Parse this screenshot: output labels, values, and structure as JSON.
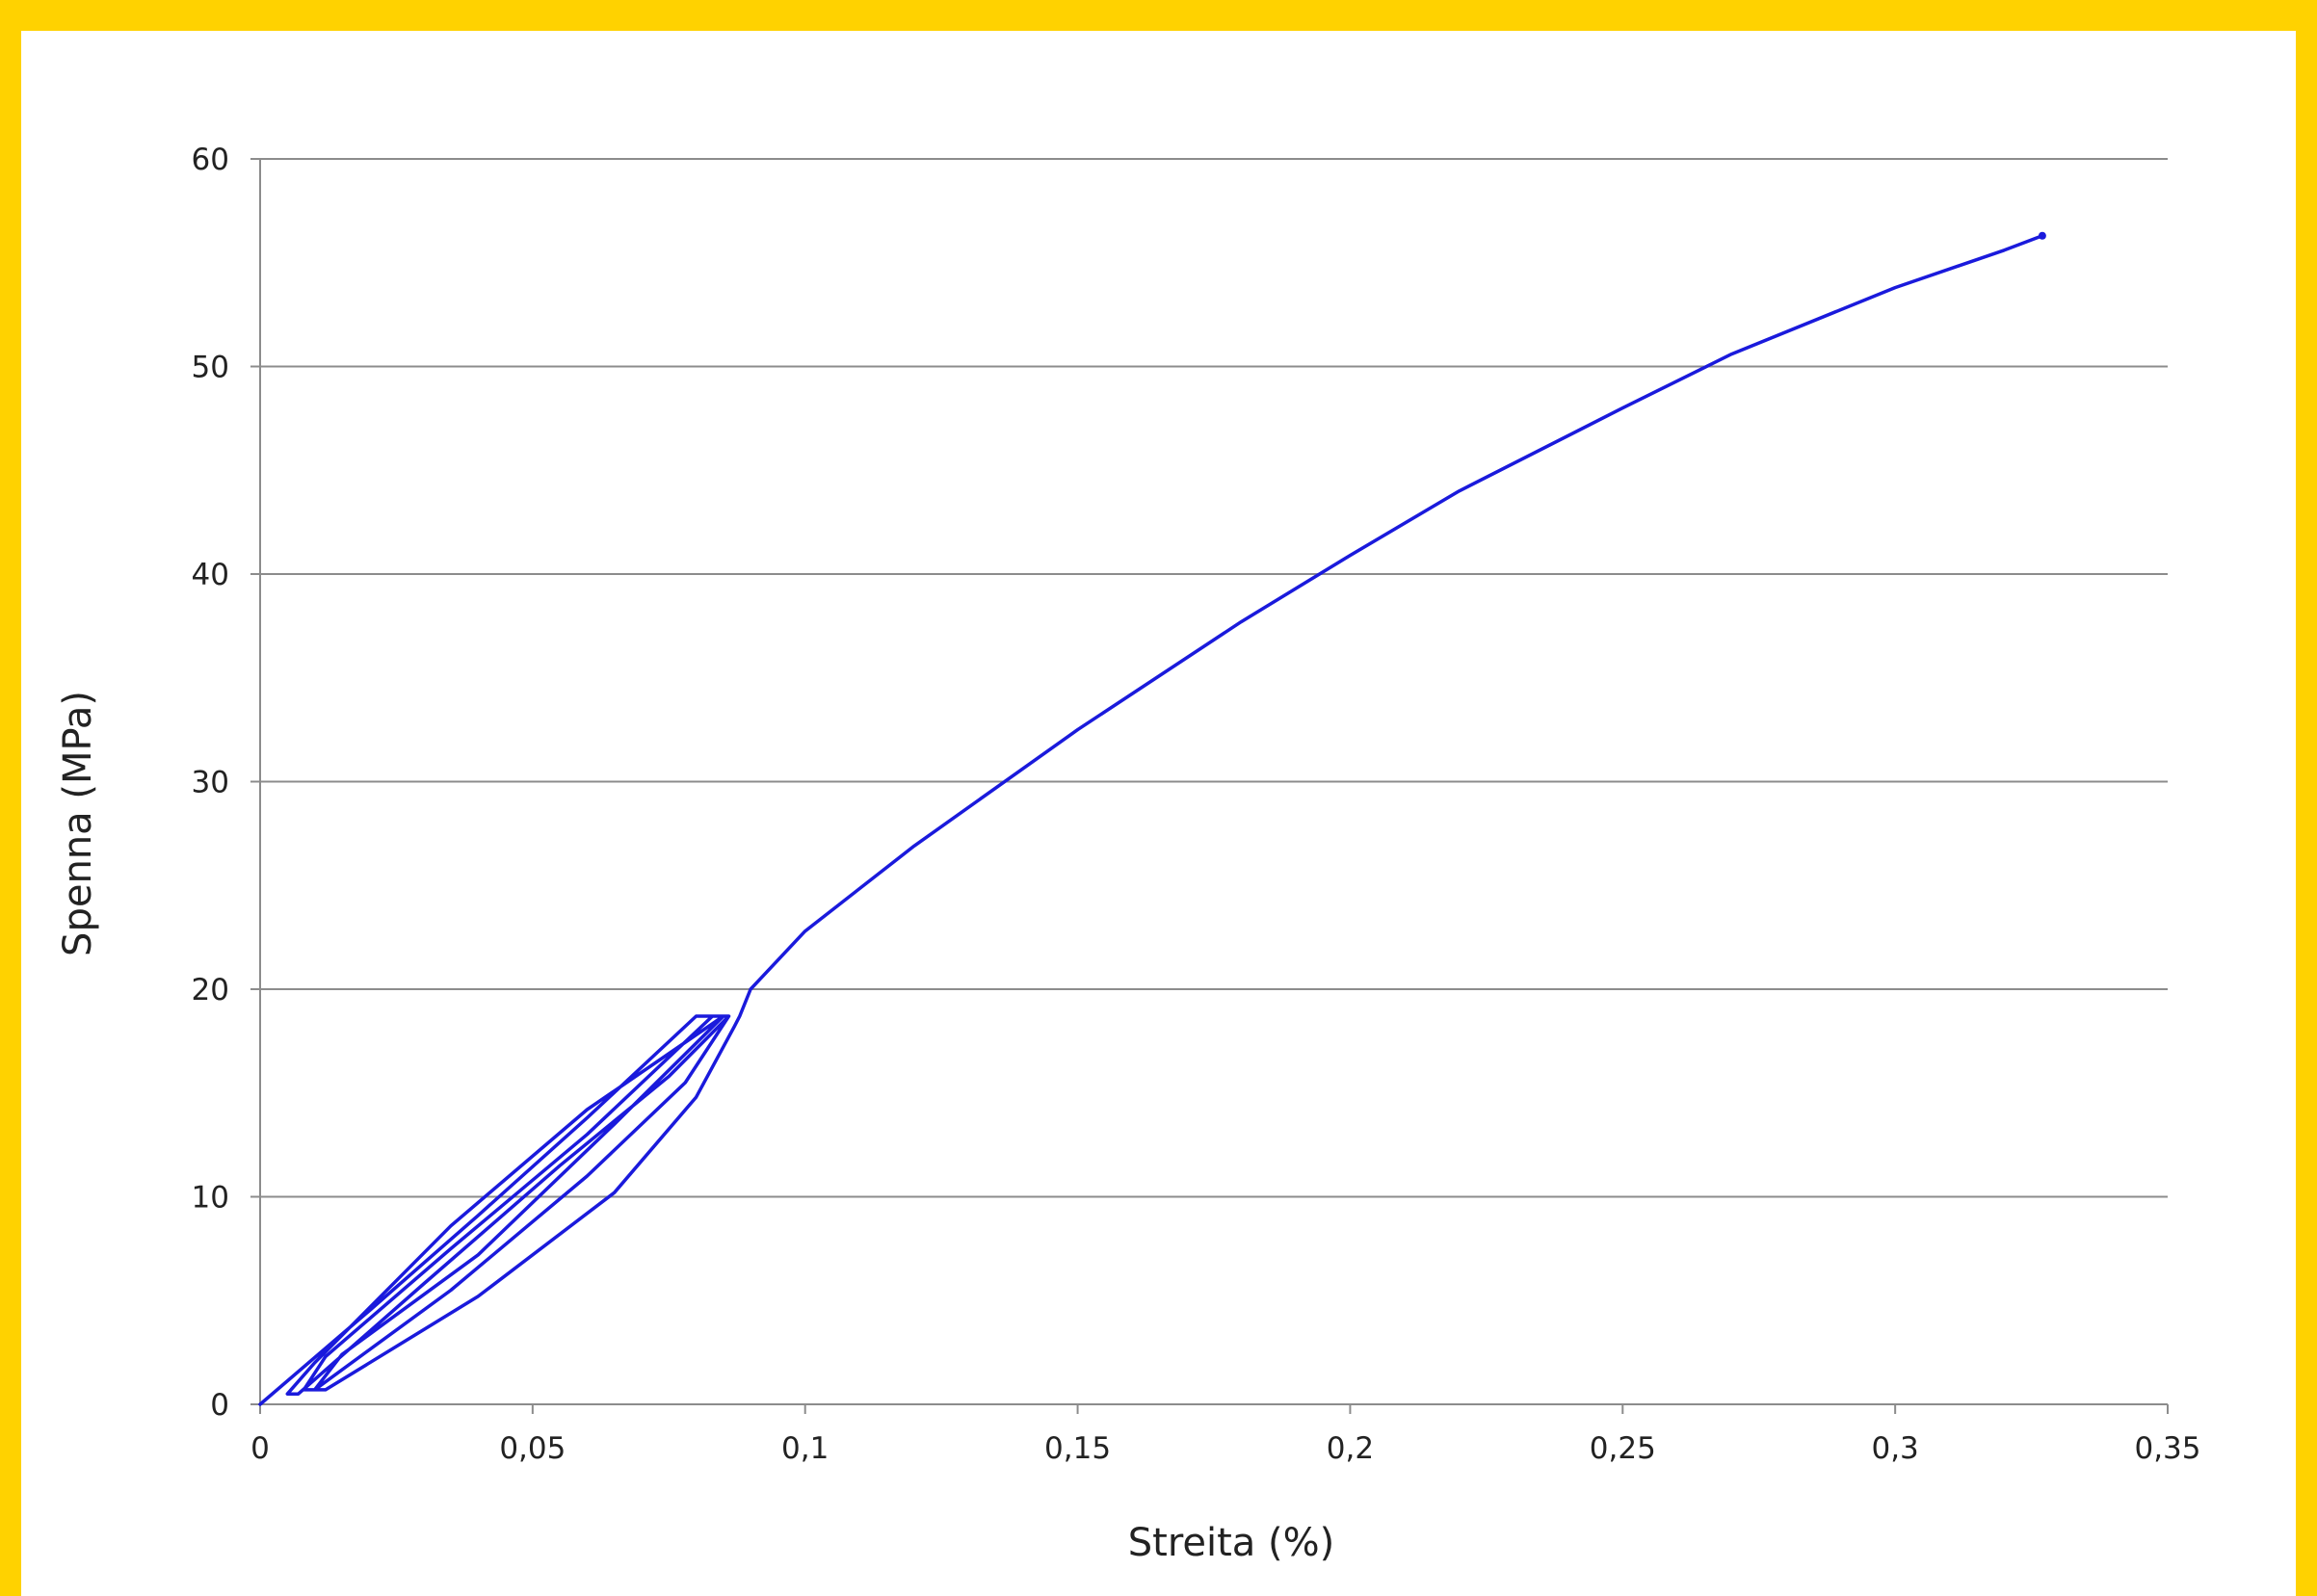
{
  "chart_data": {
    "type": "line",
    "title": "",
    "xlabel": "Streita  (%)",
    "ylabel": "Spenna (MPa)",
    "xlim": [
      0,
      0.35
    ],
    "ylim": [
      0,
      60
    ],
    "x_ticks": [
      "0",
      "0,05",
      "0,1",
      "0,15",
      "0,2",
      "0,25",
      "0,3",
      "0,35"
    ],
    "x_tick_values": [
      0,
      0.05,
      0.1,
      0.15,
      0.2,
      0.25,
      0.3,
      0.35
    ],
    "y_ticks": [
      "0",
      "10",
      "20",
      "30",
      "40",
      "50",
      "60"
    ],
    "y_tick_values": [
      0,
      10,
      20,
      30,
      40,
      50,
      60
    ],
    "grid": "horizontal",
    "legend": "none",
    "series": [
      {
        "color": "#1a1adc",
        "x": [
          0,
          0.02,
          0.04,
          0.06,
          0.08,
          0.085,
          0.06,
          0.035,
          0.01,
          0.005,
          0.007,
          0.03,
          0.055,
          0.075,
          0.086,
          0.083,
          0.06,
          0.035,
          0.012,
          0.008,
          0.01,
          0.035,
          0.06,
          0.078,
          0.086,
          0.085,
          0.065,
          0.04,
          0.015,
          0.01,
          0.012,
          0.04,
          0.065,
          0.08,
          0.087,
          0.088,
          0.09,
          0.1,
          0.12,
          0.15,
          0.18,
          0.2,
          0.22,
          0.25,
          0.27,
          0.3,
          0.32,
          0.327
        ],
        "y": [
          0,
          4.5,
          9.1,
          13.8,
          18.7,
          18.7,
          14.2,
          8.6,
          2.0,
          0.5,
          0.5,
          5.8,
          11.5,
          15.8,
          18.7,
          18.7,
          13.0,
          7.5,
          2.3,
          0.7,
          0.7,
          5.5,
          11.0,
          15.5,
          18.7,
          18.7,
          13.5,
          7.2,
          2.4,
          0.7,
          0.7,
          5.2,
          10.2,
          14.8,
          18.2,
          18.7,
          20.0,
          22.8,
          26.9,
          32.5,
          37.7,
          40.9,
          44.0,
          48.0,
          50.6,
          53.8,
          55.6,
          56.3
        ]
      }
    ]
  }
}
